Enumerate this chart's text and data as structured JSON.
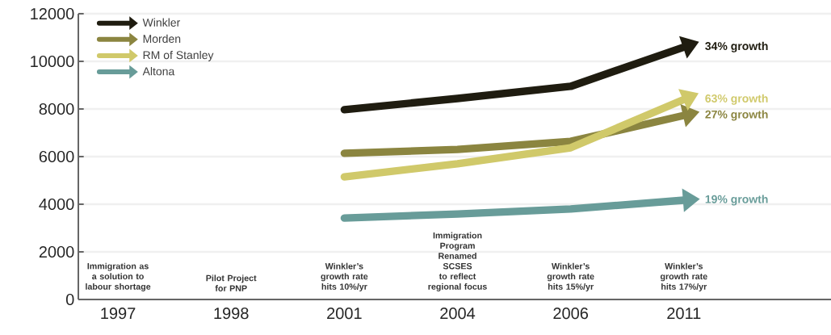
{
  "chart_data": {
    "type": "line",
    "categories": [
      "1997",
      "1998",
      "2001",
      "2004",
      "2006",
      "2011"
    ],
    "series": [
      {
        "name": "Winkler",
        "color": "#1f1c10",
        "values": [
          null,
          null,
          7970,
          8440,
          8950,
          10600
        ]
      },
      {
        "name": "Morden",
        "color": "#8b8540",
        "values": [
          null,
          null,
          6140,
          6300,
          6640,
          7730
        ]
      },
      {
        "name": "RM of Stanley",
        "color": "#d0c96a",
        "values": [
          null,
          null,
          5150,
          5700,
          6370,
          8400
        ]
      },
      {
        "name": "Altona",
        "color": "#689c99",
        "values": [
          null,
          null,
          3420,
          3590,
          3800,
          4170
        ]
      }
    ],
    "ylim": [
      0,
      12000
    ],
    "yticks": [
      0,
      2000,
      4000,
      6000,
      8000,
      10000,
      12000
    ],
    "grid": "y",
    "legend": "top left",
    "annotations": [
      {
        "text": "34% growth",
        "x": "2011",
        "y": 10600
      },
      {
        "text": "63% growth",
        "x": "2011",
        "y": 8400
      },
      {
        "text": "27% growth",
        "x": "2011",
        "y": 7730
      },
      {
        "text": "19% growth",
        "x": "2011",
        "y": 4170
      },
      "Immigration as a solution to labour shortage",
      "Pilot Project for PNP",
      "Winkler’s growth rate hits 10%/yr",
      "Immigration Program Renamed SCSES to reflect regional focus",
      "Winkler’s growth rate hits 15%/yr",
      "Winkler’s growth rate hits 17%/yr"
    ]
  }
}
